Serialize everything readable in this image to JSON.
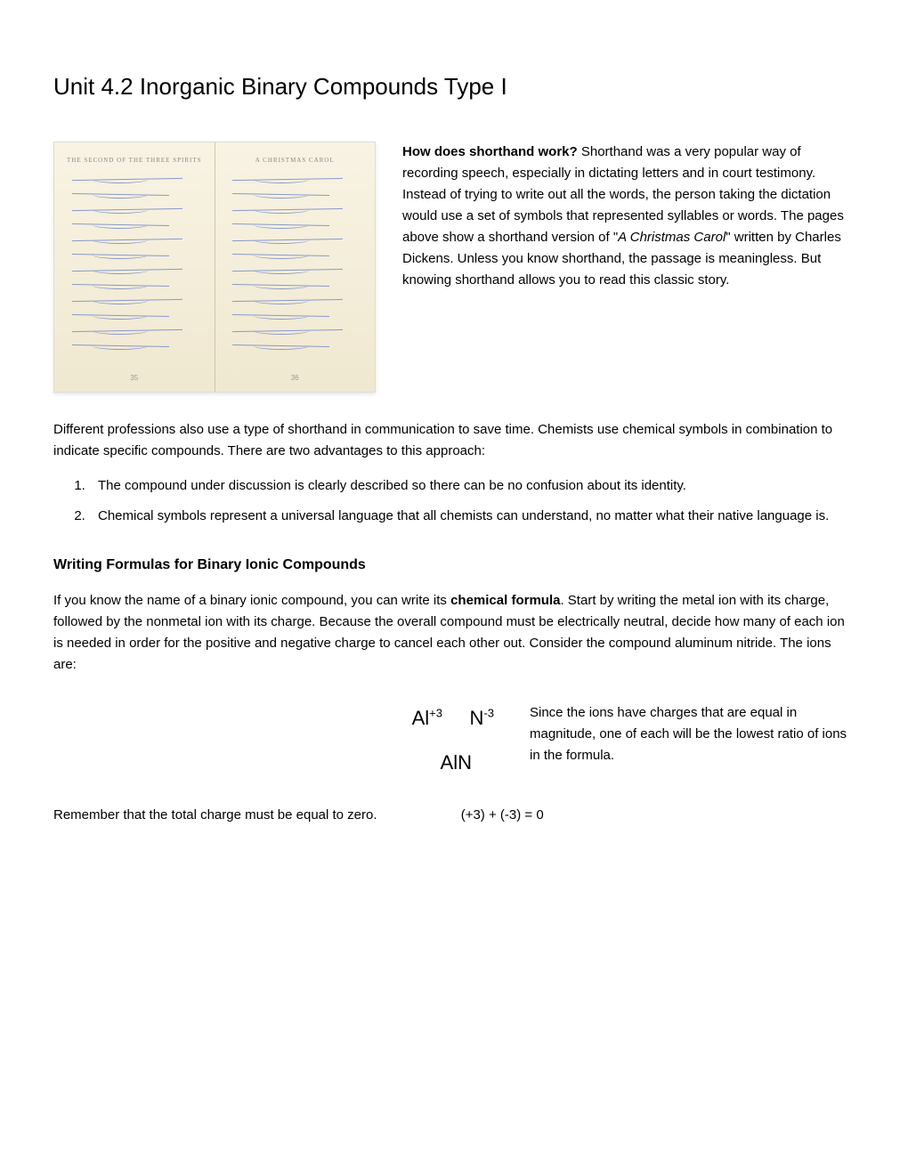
{
  "title": "Unit 4.2 Inorganic Binary Compounds Type I",
  "book_image": {
    "left_header": "THE SECOND OF THE THREE SPIRITS",
    "right_header": "A CHRISTMAS CAROL",
    "left_page_num": "35",
    "right_page_num": "36"
  },
  "intro": {
    "heading_bold": "How does shorthand work?",
    "heading_rest": "  Shorthand was a very popular way of recording speech, especially in dictating letters and in court testimony.  Instead of trying to write out all the words, the person taking the dictation would use a set of symbols that represented syllables or words.  The pages above show a shorthand version of \"",
    "italic_title": "A Christmas Carol",
    "after_italic": "\" written by Charles Dickens.  Unless you know shorthand, the passage is meaningless.  But knowing shorthand allows you to read this classic story."
  },
  "para2": "Different professions also use a type of shorthand in communication to save time.  Chemists use chemical symbols in combination to indicate specific compounds.  There are two advantages to this approach:",
  "list": {
    "item1": "The compound under discussion is clearly described so there can be no confusion about its identity.",
    "item2": "Chemical symbols represent a universal language that all chemists can understand, no matter what their native language is."
  },
  "section_heading": "Writing Formulas for Binary Ionic Compounds",
  "section_para_start": "If you know the name of a binary ionic compound, you can write its ",
  "section_para_bold": "chemical formula",
  "section_para_end": ".  Start by writing the metal ion with its charge, followed by the nonmetal ion with its charge.  Because the overall compound must be electrically neutral, decide how many of each ion is needed in order for the positive and negative charge to cancel each other out.  Consider the compound aluminum nitride.  The ions are:",
  "formula": {
    "ion1_base": "Al",
    "ion1_sup": "+3",
    "ion2_base": "N",
    "ion2_sup": "-3",
    "compound": "AlN",
    "explanation": "Since the ions have charges that are equal in magnitude, one of each will be the lowest ratio of ions in the formula."
  },
  "charge_text": "Remember that the total charge must be equal to zero.",
  "charge_equation": "(+3)  +  (-3)  =  0"
}
